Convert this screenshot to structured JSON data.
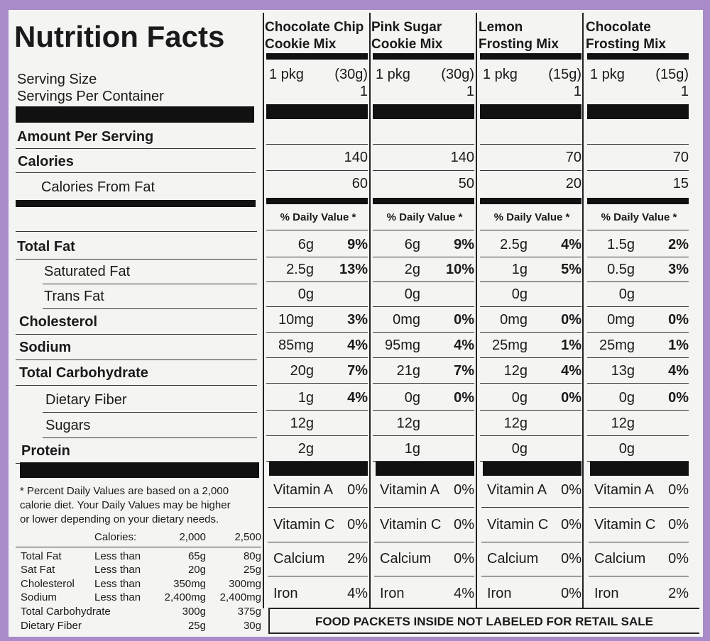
{
  "title": "Nutrition Facts",
  "labels": {
    "serving_size": "Serving Size",
    "servings_per_container": "Servings Per Container",
    "amount_per_serving": "Amount Per Serving",
    "calories": "Calories",
    "calories_from_fat": "Calories From Fat",
    "daily_value": "% Daily Value *"
  },
  "nutrients": [
    "Total Fat",
    "Saturated Fat",
    "Trans Fat",
    "Cholesterol",
    "Sodium",
    "Total Carbohydrate",
    "Dietary Fiber",
    "Sugars",
    "Protein"
  ],
  "footnote": [
    "* Percent Daily Values are based on a 2,000",
    "calorie diet. Your Daily Values may be higher",
    "or lower depending on your dietary needs."
  ],
  "footnote_table": {
    "header": [
      "Calories:",
      "2,000",
      "2,500"
    ],
    "rows": [
      [
        "Total Fat",
        "Less than",
        "65g",
        "80g"
      ],
      [
        "Sat Fat",
        "Less than",
        "20g",
        "25g"
      ],
      [
        "Cholesterol",
        "Less than",
        "350mg",
        "300mg"
      ],
      [
        "Sodium",
        "Less than",
        "2,400mg",
        "2,400mg"
      ],
      [
        "Total Carbohydrate",
        "300g",
        "375g"
      ],
      [
        "Dietary Fiber",
        "25g",
        "30g"
      ]
    ]
  },
  "products": [
    {
      "name": [
        "Chocolate Chip",
        "Cookie Mix"
      ],
      "serving": "1 pkg",
      "weight": "(30g)",
      "servings": 1,
      "calories": 140,
      "calories_from_fat": 60,
      "nutrients": [
        [
          "6g",
          "9%"
        ],
        [
          "2.5g",
          "13%"
        ],
        [
          "0g"
        ],
        [
          "10mg",
          "3%"
        ],
        [
          "85mg",
          "4%"
        ],
        [
          "20g",
          "7%"
        ],
        [
          "1g",
          "4%"
        ],
        [
          "12g"
        ],
        [
          "2g"
        ]
      ],
      "vitamins": [
        [
          "Vitamin A",
          "0%"
        ],
        [
          "Vitamin C",
          "0%"
        ],
        [
          "Calcium",
          "2%"
        ],
        [
          "Iron",
          "4%"
        ]
      ]
    },
    {
      "name": [
        "Pink Sugar",
        "Cookie Mix"
      ],
      "serving": "1 pkg",
      "weight": "(30g)",
      "servings": 1,
      "calories": 140,
      "calories_from_fat": 50,
      "nutrients": [
        [
          "6g",
          "9%"
        ],
        [
          "2g",
          "10%"
        ],
        [
          "0g"
        ],
        [
          "0mg",
          "0%"
        ],
        [
          "95mg",
          "4%"
        ],
        [
          "21g",
          "7%"
        ],
        [
          "0g",
          "0%"
        ],
        [
          "12g"
        ],
        [
          "1g"
        ]
      ],
      "vitamins": [
        [
          "Vitamin A",
          "0%"
        ],
        [
          "Vitamin C",
          "0%"
        ],
        [
          "Calcium",
          "0%"
        ],
        [
          "Iron",
          "4%"
        ]
      ]
    },
    {
      "name": [
        "Lemon",
        "Frosting Mix"
      ],
      "serving": "1 pkg",
      "weight": "(15g)",
      "servings": 1,
      "calories": 70,
      "calories_from_fat": 20,
      "nutrients": [
        [
          "2.5g",
          "4%"
        ],
        [
          "1g",
          "5%"
        ],
        [
          "0g"
        ],
        [
          "0mg",
          "0%"
        ],
        [
          "25mg",
          "1%"
        ],
        [
          "12g",
          "4%"
        ],
        [
          "0g",
          "0%"
        ],
        [
          "12g"
        ],
        [
          "0g"
        ]
      ],
      "vitamins": [
        [
          "Vitamin A",
          "0%"
        ],
        [
          "Vitamin C",
          "0%"
        ],
        [
          "Calcium",
          "0%"
        ],
        [
          "Iron",
          "0%"
        ]
      ]
    },
    {
      "name": [
        "Chocolate",
        "Frosting Mix"
      ],
      "serving": "1 pkg",
      "weight": "(15g)",
      "servings": 1,
      "calories": 70,
      "calories_from_fat": 15,
      "nutrients": [
        [
          "1.5g",
          "2%"
        ],
        [
          "0.5g",
          "3%"
        ],
        [
          "0g"
        ],
        [
          "0mg",
          "0%"
        ],
        [
          "25mg",
          "1%"
        ],
        [
          "13g",
          "4%"
        ],
        [
          "0g",
          "0%"
        ],
        [
          "12g"
        ],
        [
          "0g"
        ]
      ],
      "vitamins": [
        [
          "Vitamin A",
          "0%"
        ],
        [
          "Vitamin C",
          "0%"
        ],
        [
          "Calcium",
          "0%"
        ],
        [
          "Iron",
          "2%"
        ]
      ]
    }
  ],
  "retail_note": "FOOD PACKETS INSIDE NOT LABELED FOR RETAIL SALE"
}
